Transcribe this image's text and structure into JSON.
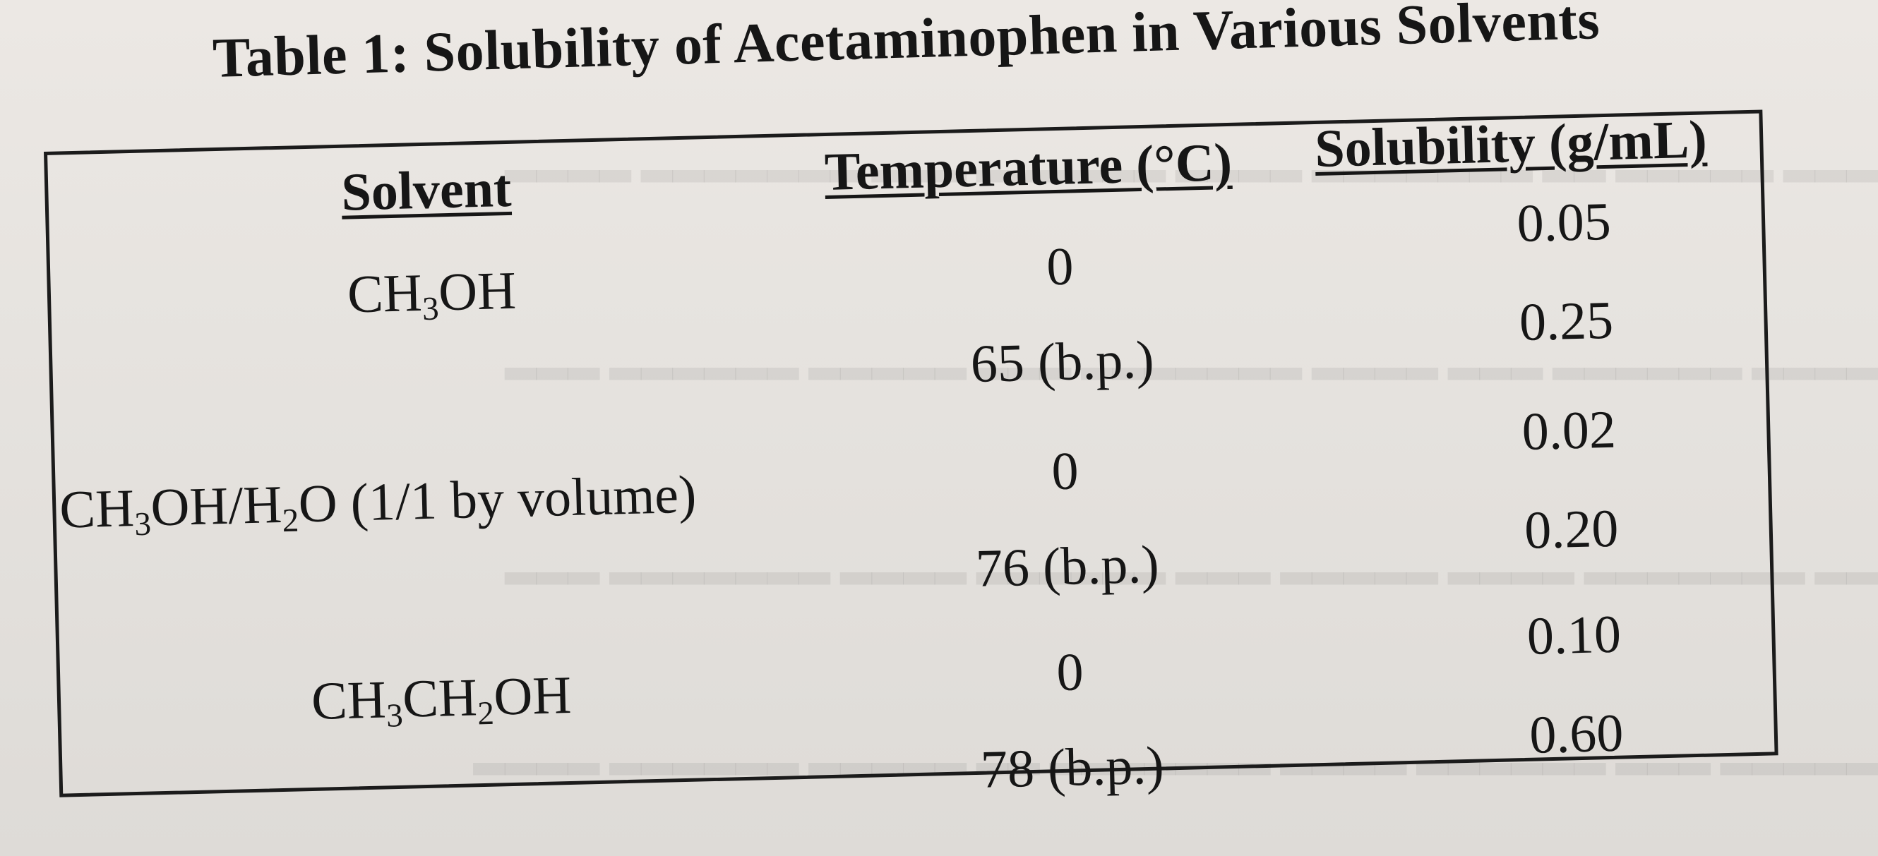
{
  "title": "Table 1: Solubility of Acetaminophen in Various Solvents",
  "table": {
    "headers": {
      "solvent": "Solvent",
      "temperature": "Temperature (°C)",
      "solubility": "Solubility (g/mL)"
    },
    "solvents": {
      "s1": {
        "p1": "CH",
        "s1": "3",
        "p2": "OH"
      },
      "s2": {
        "p1": "CH",
        "s1": "3",
        "p2": "OH/H",
        "s2": "2",
        "p3": "O (1/1 by volume)"
      },
      "s3": {
        "p1": "CH",
        "s1": "3",
        "p2": "CH",
        "s2": "2",
        "p3": "OH"
      }
    },
    "rows": [
      {
        "temperature": "0",
        "solubility": "0.05"
      },
      {
        "temperature": "65 (b.p.)",
        "solubility": "0.25"
      },
      {
        "temperature": "0",
        "solubility": "0.02"
      },
      {
        "temperature": "76 (b.p.)",
        "solubility": "0.20"
      },
      {
        "temperature": "0",
        "solubility": "0.10"
      },
      {
        "temperature": "78 (b.p.)",
        "solubility": "0.60"
      }
    ]
  }
}
